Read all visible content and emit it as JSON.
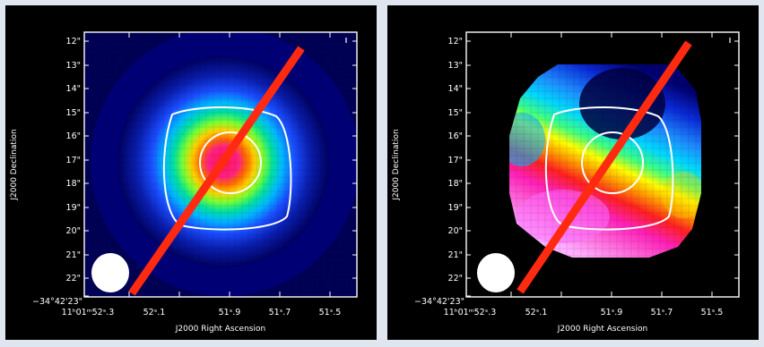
{
  "panels": [
    {
      "name": "intensity-map",
      "xlabel": "J2000 Right Ascension",
      "ylabel": "J2000 Declination",
      "dec_ticks": [
        "12\"",
        "13\"",
        "14\"",
        "15\"",
        "16\"",
        "17\"",
        "18\"",
        "19\"",
        "20\"",
        "21\"",
        "22\"",
        "−34°42'23\""
      ],
      "ra_ticks": [
        "11ʰ01ᵐ52ˢ.3",
        "52ˢ.1",
        "51ˢ.9",
        "51ˢ.7",
        "51ˢ.5"
      ],
      "colormap": "rainbow-intensity",
      "contour_color": "#ffffff",
      "slit_color": "#ff2a10",
      "beam_color": "#ffffff"
    },
    {
      "name": "velocity-map",
      "xlabel": "J2000 Right Ascension",
      "ylabel": "J2000 Declination",
      "dec_ticks": [
        "12\"",
        "13\"",
        "14\"",
        "15\"",
        "16\"",
        "17\"",
        "18\"",
        "19\"",
        "20\"",
        "21\"",
        "22\"",
        "−34°42'23\""
      ],
      "ra_ticks": [
        "11ʰ01ᵐ52ˢ.3",
        "52ˢ.1",
        "51ˢ.9",
        "51ˢ.7",
        "51ˢ.5"
      ],
      "colormap": "velocity-rainbow",
      "contour_color": "#ffffff",
      "slit_color": "#ff2a10",
      "beam_color": "#ffffff"
    }
  ],
  "colors": {
    "figure_background": "#dfe6ef",
    "panel_background": "#000000"
  }
}
